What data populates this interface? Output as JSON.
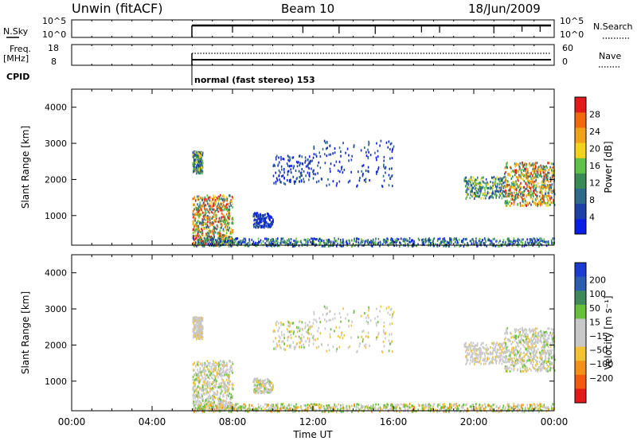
{
  "header": {
    "left_title": "Unwin (fitACF)",
    "center_title": "Beam 10",
    "right_title": "18/Jun/2009"
  },
  "panels": {
    "nsky_label": "N.Sky",
    "nsky_ticks": [
      "10^5",
      "10^0"
    ],
    "nsearch_label": "N.Search",
    "nsearch_ticks": [
      "10^5",
      "10^0"
    ],
    "freq_label_1": "Freq.",
    "freq_label_2": "[MHz]",
    "freq_ticks": [
      "18",
      "8"
    ],
    "nave_label": "Nave",
    "nave_ticks": [
      "60",
      "0"
    ],
    "cpid_label": "CPID",
    "cpid_text": "normal (fast stereo) 153"
  },
  "colors": {
    "power_scale": [
      "#0a1fe6",
      "#1d3fa8",
      "#2e6b8a",
      "#3a8a55",
      "#5ec24a",
      "#f2d21a",
      "#f2a21a",
      "#f26a0e",
      "#e31a1a"
    ],
    "velocity_scale": [
      "#1b3bd1",
      "#2d5db0",
      "#3e8a5a",
      "#66c03a",
      "#c8c8c8",
      "#c8c8c8",
      "#f2c232",
      "#f2901a",
      "#f25a10",
      "#e31a1a"
    ]
  },
  "chart_data": [
    {
      "type": "heatmap",
      "title": "",
      "ylabel": "Slant Range [km]",
      "xlabel": "",
      "x_ticks": [
        "00:00",
        "04:00",
        "08:00",
        "12:00",
        "16:00",
        "20:00",
        "00:00"
      ],
      "y_ticks": [
        1000,
        2000,
        3000,
        4000
      ],
      "xlim_hours": [
        0,
        24
      ],
      "ylim_km": [
        180,
        4500
      ],
      "colorbar_label": "Power [dB]",
      "colorbar_ticks": [
        4,
        8,
        12,
        16,
        20,
        24,
        28
      ],
      "data_start_hour": 6,
      "echo_regions_hours_km": [
        {
          "x": [
            6,
            8
          ],
          "y": [
            200,
            1600
          ],
          "level": "strong"
        },
        {
          "x": [
            6,
            6.5
          ],
          "y": [
            2200,
            2800
          ],
          "level": "medium"
        },
        {
          "x": [
            9,
            10
          ],
          "y": [
            700,
            1100
          ],
          "level": "weak"
        },
        {
          "x": [
            10,
            12
          ],
          "y": [
            1900,
            2700
          ],
          "level": "weak"
        },
        {
          "x": [
            12,
            16
          ],
          "y": [
            1800,
            3100
          ],
          "level": "weak"
        },
        {
          "x": [
            19.5,
            21.5
          ],
          "y": [
            1500,
            2100
          ],
          "level": "medium"
        },
        {
          "x": [
            21.5,
            24
          ],
          "y": [
            1300,
            2500
          ],
          "level": "strong"
        },
        {
          "x": [
            6,
            24
          ],
          "y": [
            180,
            400
          ],
          "level": "ground"
        }
      ]
    },
    {
      "type": "heatmap",
      "title": "",
      "ylabel": "Slant Range [km]",
      "xlabel": "Time UT",
      "x_ticks": [
        "00:00",
        "04:00",
        "08:00",
        "12:00",
        "16:00",
        "20:00",
        "00:00"
      ],
      "y_ticks": [
        1000,
        2000,
        3000,
        4000
      ],
      "xlim_hours": [
        0,
        24
      ],
      "ylim_km": [
        180,
        4500
      ],
      "colorbar_label": "Velocity [m s⁻¹]",
      "colorbar_ticks": [
        "200",
        "100",
        "50",
        "15",
        "−15",
        "−50",
        "−100",
        "−200"
      ],
      "data_start_hour": 6
    }
  ]
}
